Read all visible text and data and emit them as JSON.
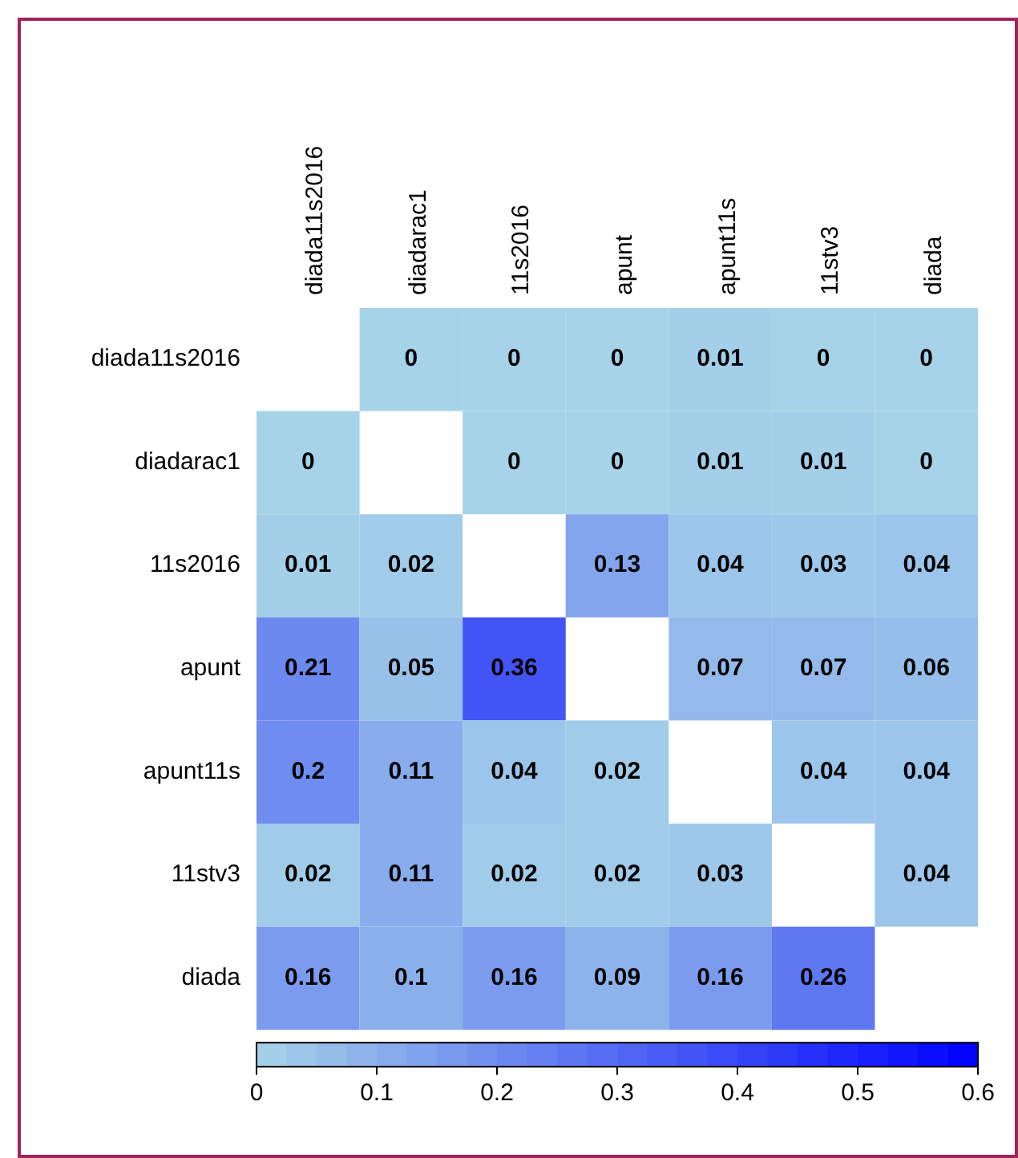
{
  "chart_data": {
    "type": "heatmap",
    "categories": [
      "diada11s2016",
      "diadarac1",
      "11s2016",
      "apunt",
      "apunt11s",
      "11stv3",
      "diada"
    ],
    "y_categories": [
      "diada11s2016",
      "diadarac1",
      "11s2016",
      "apunt",
      "apunt11s",
      "11stv3",
      "diada"
    ],
    "cells": [
      [
        null,
        0,
        0,
        0,
        0.01,
        0,
        0
      ],
      [
        0,
        null,
        0,
        0,
        0.01,
        0.01,
        0
      ],
      [
        0.01,
        0.02,
        null,
        0.13,
        0.04,
        0.03,
        0.04
      ],
      [
        0.21,
        0.05,
        0.36,
        null,
        0.07,
        0.07,
        0.06
      ],
      [
        0.2,
        0.11,
        0.04,
        0.02,
        null,
        0.04,
        0.04
      ],
      [
        0.02,
        0.11,
        0.02,
        0.02,
        0.03,
        null,
        0.04
      ],
      [
        0.16,
        0.1,
        0.16,
        0.09,
        0.16,
        0.26,
        null
      ]
    ],
    "data_labels": true,
    "clim": [
      0,
      0.6
    ],
    "cticks": [
      0,
      0.1,
      0.2,
      0.3,
      0.4,
      0.5,
      0.6
    ]
  }
}
